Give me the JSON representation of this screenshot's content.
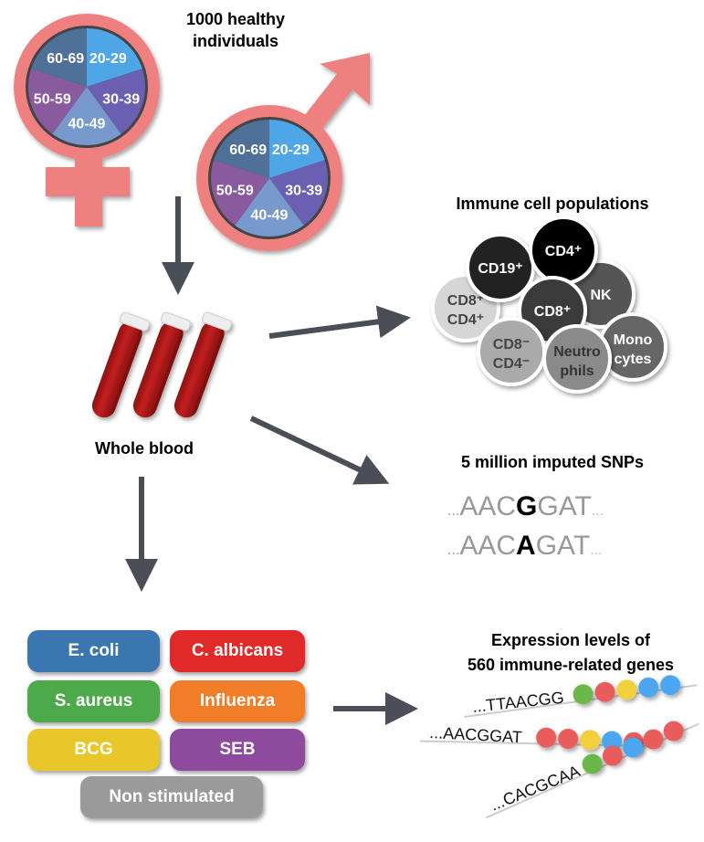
{
  "title": {
    "line1": "1000 healthy",
    "line2": "individuals"
  },
  "age_groups": [
    {
      "label": "20-29",
      "color": "#4ea6e6"
    },
    {
      "label": "30-39",
      "color": "#6a5fb0"
    },
    {
      "label": "40-49",
      "color": "#7799cc"
    },
    {
      "label": "50-59",
      "color": "#8a5a9e"
    },
    {
      "label": "60-69",
      "color": "#4f7098"
    }
  ],
  "sex_symbol_color": "#ee8080",
  "whole_blood": "Whole blood",
  "immune": {
    "title": "Immune cell populations",
    "cells": [
      {
        "label": "CD8⁺",
        "label2": "CD4⁺",
        "color": "#d6d6d6",
        "text": "#444"
      },
      {
        "label": "CD19⁺",
        "label2": "",
        "color": "#222222",
        "text": "#fff"
      },
      {
        "label": "NK",
        "label2": "",
        "color": "#555555",
        "text": "#fff"
      },
      {
        "label": "CD4⁺",
        "label2": "",
        "color": "#000000",
        "text": "#fff"
      },
      {
        "label": "CD8⁺",
        "label2": "",
        "color": "#3a3a3a",
        "text": "#fff"
      },
      {
        "label": "Mono",
        "label2": "cytes",
        "color": "#666666",
        "text": "#fff"
      },
      {
        "label": "CD8⁻",
        "label2": "CD4⁻",
        "color": "#aaaaaa",
        "text": "#444"
      },
      {
        "label": "Neutro",
        "label2": "phils",
        "color": "#8a8a8a",
        "text": "#333"
      }
    ]
  },
  "snps": {
    "title": "5 million imputed SNPs",
    "seq1": {
      "pre": "AACG",
      "pre_plain": "AAC",
      "allele": "G",
      "post": "GAT"
    },
    "seq2": {
      "pre_plain": "AAC",
      "allele": "A",
      "post": "GAT"
    },
    "ellipsis": "..."
  },
  "stimuli": [
    {
      "label": "E. coli",
      "color": "#3a76b0"
    },
    {
      "label": "C. albicans",
      "color": "#e02a2a"
    },
    {
      "label": "S. aureus",
      "color": "#4caa4a"
    },
    {
      "label": "Influenza",
      "color": "#f27d28"
    },
    {
      "label": "BCG",
      "color": "#e9c62a"
    },
    {
      "label": "SEB",
      "color": "#8e4a9c"
    },
    {
      "label": "Non stimulated",
      "color": "#9a9a9a"
    }
  ],
  "expression": {
    "title1": "Expression levels of",
    "title2": "560 immune-related genes",
    "rows": [
      {
        "seq": "...TTAACGG",
        "beads": [
          "#6ab84a",
          "#e85c5c",
          "#f2cf3e",
          "#4ea6f0",
          "#4ea6f0"
        ]
      },
      {
        "seq": "...AACGGAT",
        "beads": [
          "#e85c5c",
          "#e85c5c",
          "#f2cf3e",
          "#4ea6f0",
          "#e85c5c"
        ]
      },
      {
        "seq": "...CACGCAA",
        "beads": [
          "#6ab84a",
          "#e85c5c",
          "#4ea6f0",
          "#e85c5c",
          "#e85c5c"
        ]
      }
    ]
  },
  "arrow_color": "#4a4f57"
}
